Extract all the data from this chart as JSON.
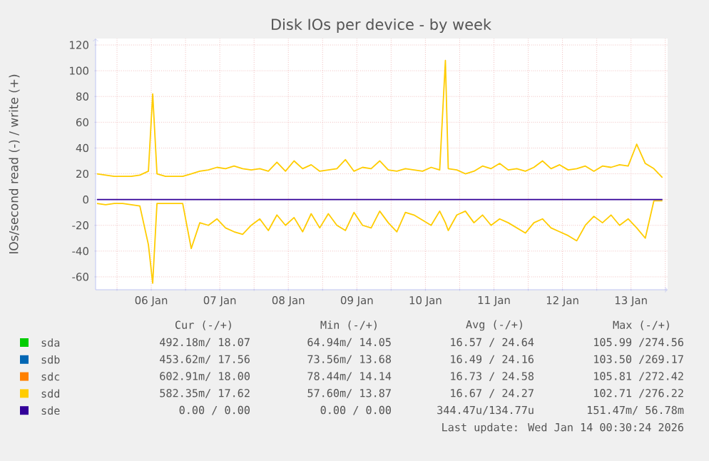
{
  "chart_data": {
    "type": "line",
    "title": "Disk IOs per device - by week",
    "ylabel": "IOs/second read (-) / write (+)",
    "x": [
      "2026-01-05T17:00",
      "2026-01-05T20:00",
      "2026-01-05T23:00",
      "2026-01-06T02:00",
      "2026-01-06T05:00",
      "2026-01-06T08:00",
      "2026-01-06T11:00",
      "2026-01-06T12:30",
      "2026-01-06T14:00",
      "2026-01-06T17:00",
      "2026-01-06T20:00",
      "2026-01-06T23:00",
      "2026-01-07T02:00",
      "2026-01-07T05:00",
      "2026-01-07T08:00",
      "2026-01-07T11:00",
      "2026-01-07T14:00",
      "2026-01-07T17:00",
      "2026-01-07T20:00",
      "2026-01-07T23:00",
      "2026-01-08T02:00",
      "2026-01-08T05:00",
      "2026-01-08T08:00",
      "2026-01-08T11:00",
      "2026-01-08T14:00",
      "2026-01-08T17:00",
      "2026-01-08T20:00",
      "2026-01-08T23:00",
      "2026-01-09T02:00",
      "2026-01-09T05:00",
      "2026-01-09T08:00",
      "2026-01-09T11:00",
      "2026-01-09T14:00",
      "2026-01-09T17:00",
      "2026-01-09T20:00",
      "2026-01-09T23:00",
      "2026-01-10T02:00",
      "2026-01-10T05:00",
      "2026-01-10T08:00",
      "2026-01-10T11:00",
      "2026-01-10T14:00",
      "2026-01-10T17:00",
      "2026-01-10T19:00",
      "2026-01-10T20:00",
      "2026-01-10T23:00",
      "2026-01-11T02:00",
      "2026-01-11T05:00",
      "2026-01-11T08:00",
      "2026-01-11T11:00",
      "2026-01-11T14:00",
      "2026-01-11T17:00",
      "2026-01-11T20:00",
      "2026-01-11T23:00",
      "2026-01-12T02:00",
      "2026-01-12T05:00",
      "2026-01-12T08:00",
      "2026-01-12T11:00",
      "2026-01-12T14:00",
      "2026-01-12T17:00",
      "2026-01-12T20:00",
      "2026-01-12T23:00",
      "2026-01-13T02:00",
      "2026-01-13T05:00",
      "2026-01-13T08:00",
      "2026-01-13T11:00",
      "2026-01-13T14:00",
      "2026-01-13T17:00",
      "2026-01-13T20:00",
      "2026-01-13T23:00"
    ],
    "xlim": [
      "2026-01-05T16:30",
      "2026-01-14T00:50"
    ],
    "xticks": [
      {
        "value": "2026-01-06T00:00",
        "label": null
      },
      {
        "value": "2026-01-06T12:00",
        "label": "06 Jan"
      },
      {
        "value": "2026-01-07T00:00",
        "label": null
      },
      {
        "value": "2026-01-07T12:00",
        "label": "07 Jan"
      },
      {
        "value": "2026-01-08T00:00",
        "label": null
      },
      {
        "value": "2026-01-08T12:00",
        "label": "08 Jan"
      },
      {
        "value": "2026-01-09T00:00",
        "label": null
      },
      {
        "value": "2026-01-09T12:00",
        "label": "09 Jan"
      },
      {
        "value": "2026-01-10T00:00",
        "label": null
      },
      {
        "value": "2026-01-10T12:00",
        "label": "10 Jan"
      },
      {
        "value": "2026-01-11T00:00",
        "label": null
      },
      {
        "value": "2026-01-11T12:00",
        "label": "11 Jan"
      },
      {
        "value": "2026-01-12T00:00",
        "label": null
      },
      {
        "value": "2026-01-12T12:00",
        "label": "12 Jan"
      },
      {
        "value": "2026-01-13T00:00",
        "label": null
      },
      {
        "value": "2026-01-13T12:00",
        "label": "13 Jan"
      },
      {
        "value": "2026-01-14T00:00",
        "label": null
      }
    ],
    "ylim": [
      -70,
      125
    ],
    "yticks": [
      -60,
      -40,
      -20,
      0,
      20,
      40,
      60,
      80,
      100,
      120
    ],
    "grid": true,
    "legend": "bottom",
    "series": [
      {
        "name": "sda",
        "color": "#00cc00",
        "values": [
          null,
          null,
          null,
          null,
          null,
          null,
          null,
          null,
          null,
          null,
          null,
          null,
          null,
          null,
          null,
          null,
          null,
          null,
          null,
          null,
          null,
          null,
          null,
          null,
          null,
          null,
          null,
          null,
          null,
          null,
          null,
          null,
          null,
          null,
          null,
          null,
          null,
          null,
          null,
          null,
          null,
          null,
          null,
          null,
          null,
          null,
          null,
          null,
          null,
          null,
          null,
          null,
          null,
          null,
          null,
          null,
          null,
          null,
          null,
          null,
          null,
          null,
          null,
          null,
          null,
          null,
          null,
          null,
          null
        ]
      },
      {
        "name": "sdb",
        "color": "#0066b3",
        "values": [
          null,
          null,
          null,
          null,
          null,
          null,
          null,
          null,
          null,
          null,
          null,
          null,
          null,
          null,
          null,
          null,
          null,
          null,
          null,
          null,
          null,
          null,
          null,
          null,
          null,
          null,
          null,
          null,
          null,
          null,
          null,
          null,
          null,
          null,
          null,
          null,
          null,
          null,
          null,
          null,
          null,
          null,
          null,
          null,
          null,
          null,
          null,
          null,
          null,
          null,
          null,
          null,
          null,
          null,
          null,
          null,
          null,
          null,
          null,
          null,
          null,
          null,
          null,
          null,
          null,
          null,
          null,
          null,
          null
        ]
      },
      {
        "name": "sdc",
        "color": "#ff8000",
        "values": [
          null,
          null,
          null,
          null,
          null,
          null,
          null,
          null,
          null,
          null,
          null,
          null,
          null,
          null,
          null,
          null,
          null,
          null,
          null,
          null,
          null,
          null,
          null,
          null,
          null,
          null,
          null,
          null,
          null,
          null,
          null,
          null,
          null,
          null,
          null,
          null,
          null,
          null,
          null,
          null,
          null,
          null,
          null,
          null,
          null,
          null,
          null,
          null,
          null,
          null,
          null,
          null,
          null,
          null,
          null,
          null,
          null,
          null,
          null,
          null,
          null,
          null,
          null,
          null,
          null,
          null,
          null,
          null,
          null
        ]
      },
      {
        "name": "sdd",
        "color": "#ffcc00",
        "values": [
          20,
          19,
          18,
          18,
          18,
          19,
          22,
          82,
          20,
          18,
          18,
          18,
          20,
          22,
          23,
          25,
          24,
          26,
          24,
          23,
          24,
          22,
          29,
          22,
          30,
          24,
          27,
          22,
          23,
          24,
          31,
          22,
          25,
          24,
          30,
          23,
          22,
          24,
          23,
          22,
          25,
          23,
          108,
          24,
          23,
          20,
          22,
          26,
          24,
          28,
          23,
          24,
          22,
          25,
          30,
          24,
          27,
          23,
          24,
          26,
          22,
          26,
          25,
          27,
          26,
          43,
          28,
          24,
          17
        ]
      },
      {
        "color": "#ffcc00",
        "values": [
          -3,
          -4,
          -3,
          -3,
          -4,
          -5,
          -35,
          -65,
          -3,
          -3,
          -3,
          -3,
          -38,
          -18,
          -20,
          -15,
          -22,
          -25,
          -27,
          -20,
          -15,
          -24,
          -12,
          -20,
          -14,
          -25,
          -11,
          -22,
          -11,
          -20,
          -24,
          -10,
          -20,
          -22,
          -9,
          -18,
          -25,
          -10,
          -12,
          -16,
          -20,
          -9,
          -18,
          -24,
          -12,
          -9,
          -18,
          -12,
          -20,
          -15,
          -18,
          -22,
          -26,
          -18,
          -15,
          -22,
          -25,
          -28,
          -32,
          -20,
          -13,
          -18,
          -12,
          -20,
          -15,
          -22,
          -30,
          -1,
          -1
        ]
      },
      {
        "name": "sde",
        "color": "#330099",
        "values": [
          0,
          0,
          0,
          0,
          0,
          0,
          0,
          0,
          0,
          0,
          0,
          0,
          0,
          0,
          0,
          0,
          0,
          0,
          0,
          0,
          0,
          0,
          0,
          0,
          0,
          0,
          0,
          0,
          0,
          0,
          0,
          0,
          0,
          0,
          0,
          0,
          0,
          0,
          0,
          0,
          0,
          0,
          0,
          0,
          0,
          0,
          0,
          0,
          0,
          0,
          0,
          0,
          0,
          0,
          0,
          0,
          0,
          0,
          0,
          0,
          0,
          0,
          0,
          0,
          0,
          0,
          0,
          0,
          0
        ]
      }
    ],
    "annotations": [
      "Cur (-/+)",
      "Min (-/+)",
      "Avg (-/+)",
      "Max (-/+)",
      "492.18m/ 18.07",
      "64.94m/ 14.05",
      "16.57 / 24.64",
      "105.99 /274.56",
      "453.62m/ 17.56",
      "73.56m/ 13.68",
      "16.49 / 24.16",
      "103.50 /269.17",
      "602.91m/ 18.00",
      "78.44m/ 14.14",
      "16.73 / 24.58",
      "105.81 /272.42",
      "582.35m/ 17.62",
      "57.60m/ 13.87",
      "16.67 / 24.27",
      "102.71 /276.22",
      "0.00 /  0.00",
      "0.00 /  0.00",
      "344.47u/134.77u",
      "151.47m/ 56.78m",
      "Last update: Wed Jan 14 00:30:24 2026"
    ]
  }
}
